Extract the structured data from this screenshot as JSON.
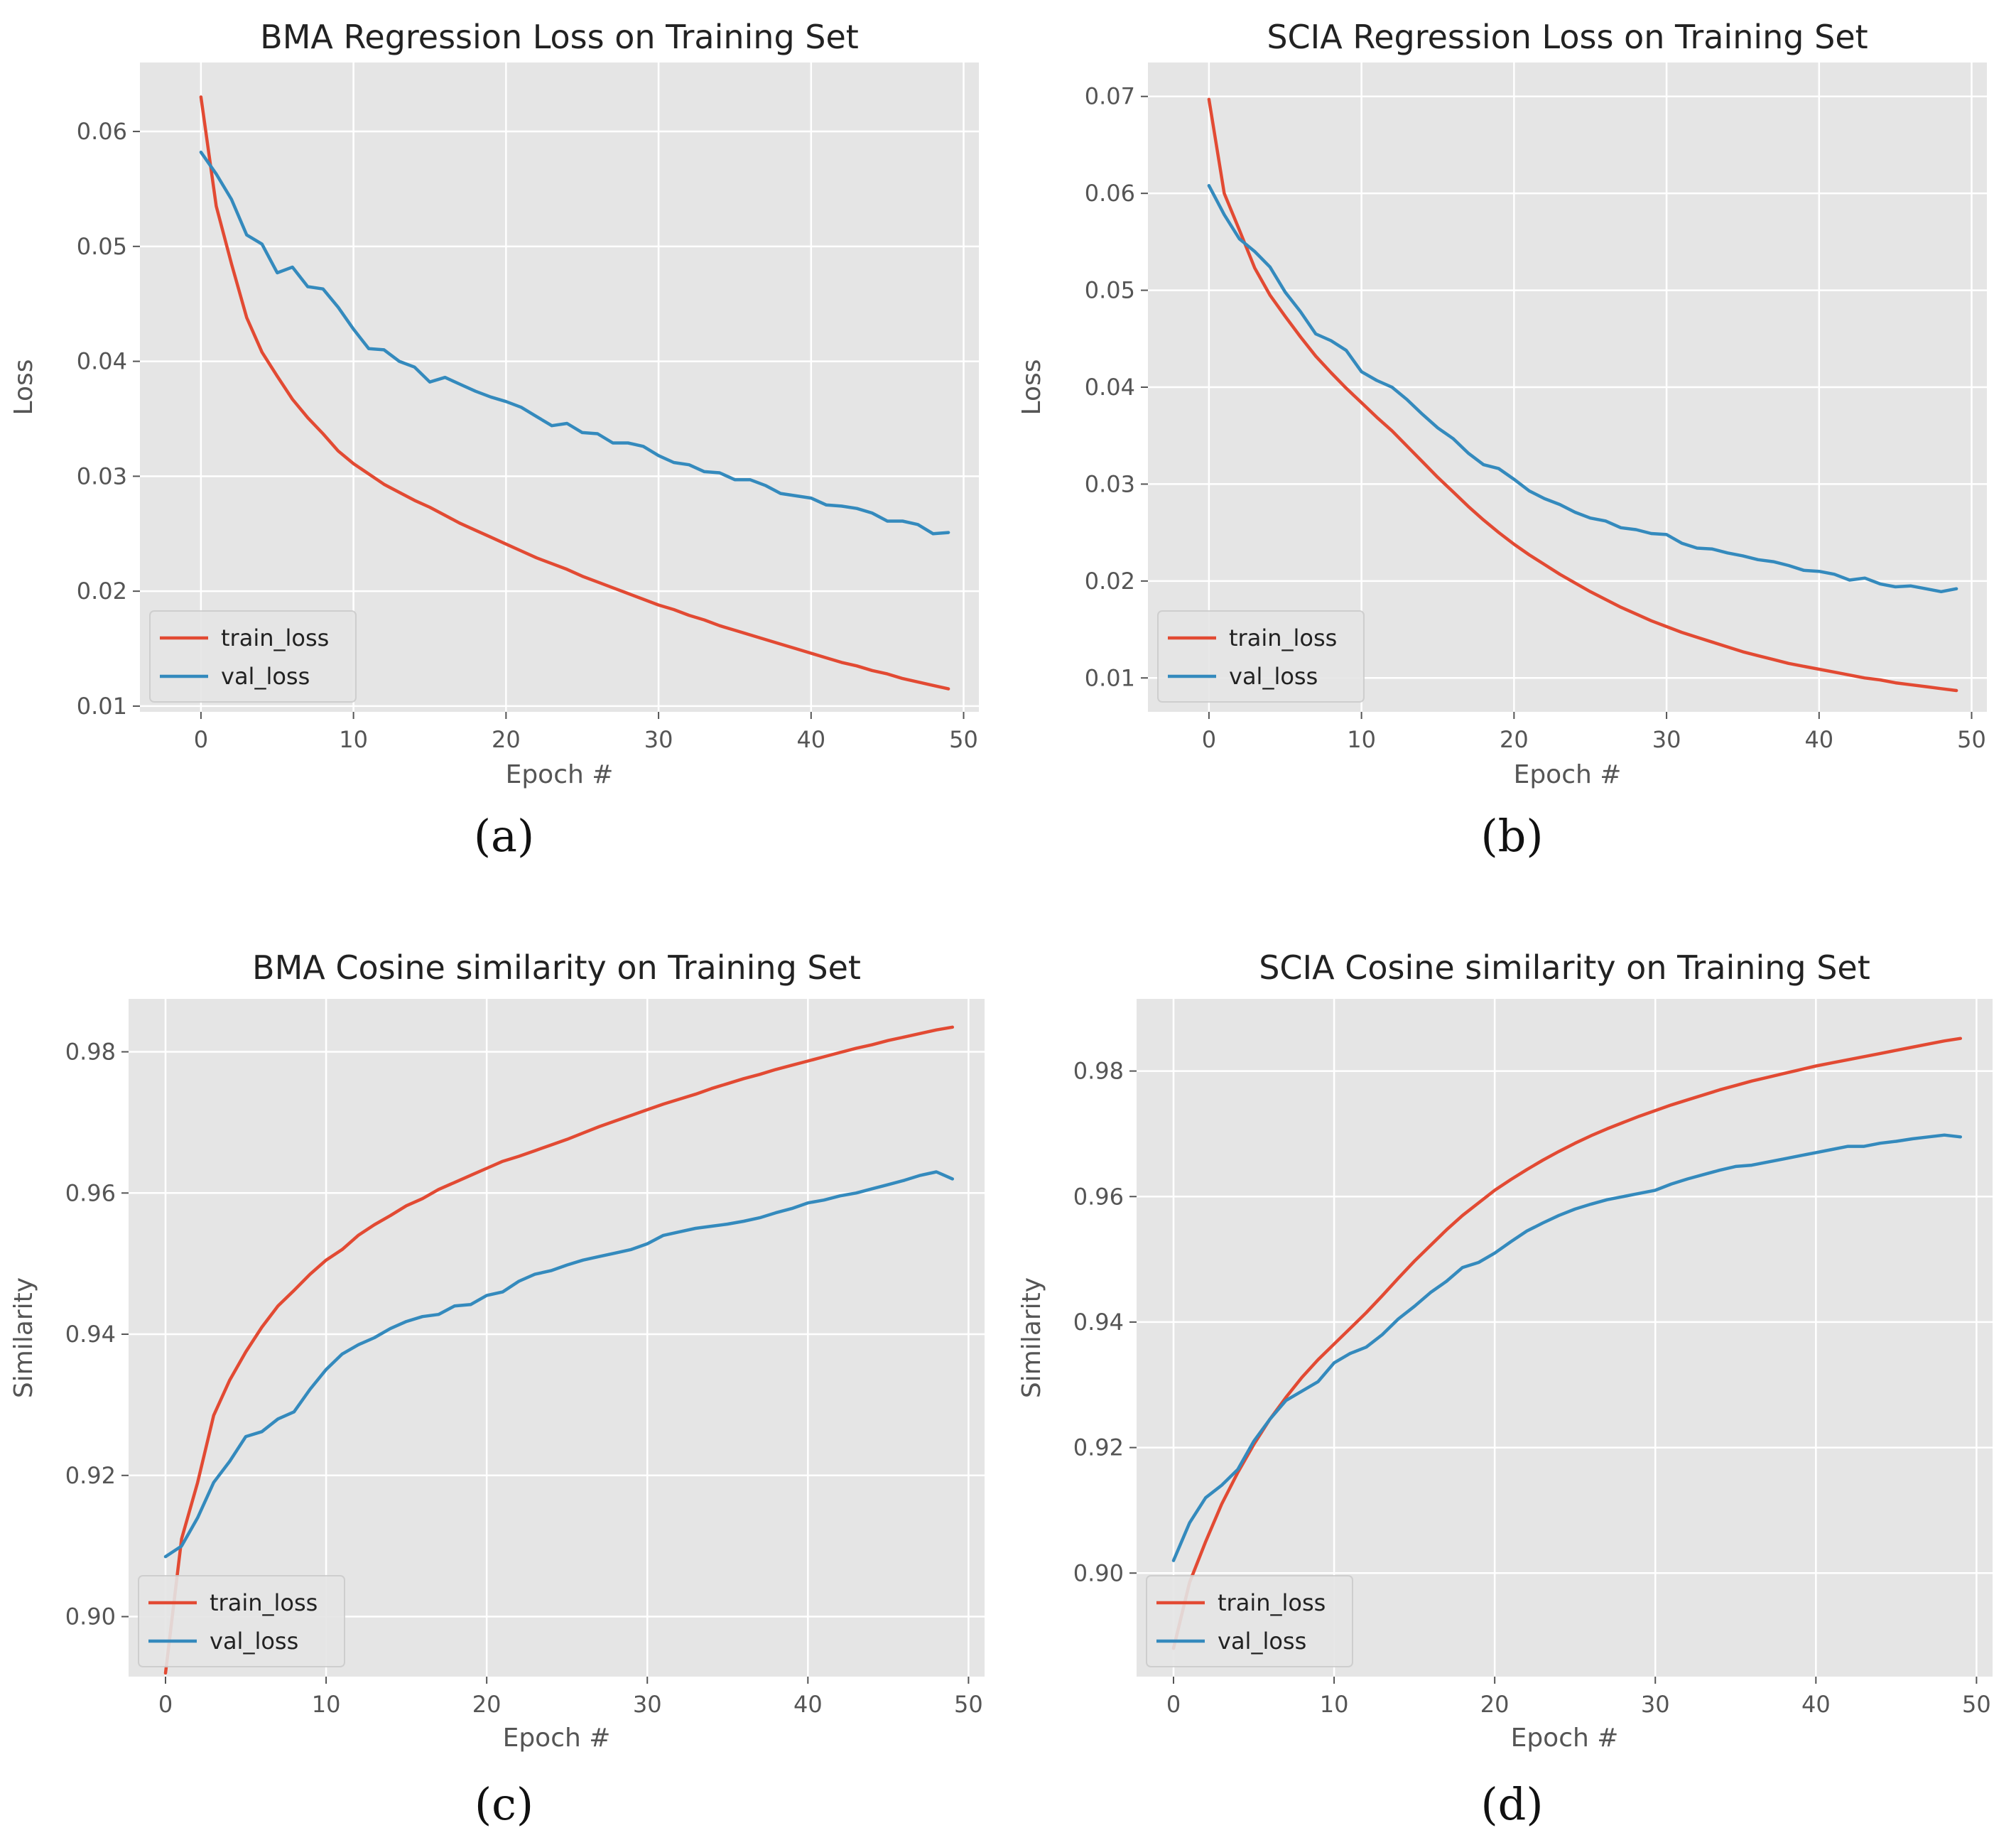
{
  "colors": {
    "train": "#e24a33",
    "val": "#348abd",
    "plot_bg": "#e5e5e5",
    "grid": "#ffffff"
  },
  "chart_data": [
    {
      "type": "line",
      "caption": "(a)",
      "title": "BMA Regression Loss on Training Set",
      "xlabel": "Epoch #",
      "ylabel": "Loss",
      "xlim": [
        -4,
        51
      ],
      "ylim": [
        0.0095,
        0.066
      ],
      "xticks": [
        0,
        10,
        20,
        30,
        40,
        50
      ],
      "xtick_labels": [
        "0",
        "10",
        "20",
        "30",
        "40",
        "50"
      ],
      "yticks": [
        0.01,
        0.02,
        0.03,
        0.04,
        0.05,
        0.06
      ],
      "ytick_labels": [
        "0.01",
        "0.02",
        "0.03",
        "0.04",
        "0.05",
        "0.06"
      ],
      "grid": true,
      "legend_position": "lower-left",
      "x": [
        0,
        1,
        2,
        3,
        4,
        5,
        6,
        7,
        8,
        9,
        10,
        11,
        12,
        13,
        14,
        15,
        16,
        17,
        18,
        19,
        20,
        21,
        22,
        23,
        24,
        25,
        26,
        27,
        28,
        29,
        30,
        31,
        32,
        33,
        34,
        35,
        36,
        37,
        38,
        39,
        40,
        41,
        42,
        43,
        44,
        45,
        46,
        47,
        48,
        49
      ],
      "series": [
        {
          "name": "train_loss",
          "values": [
            0.063,
            0.0535,
            0.0485,
            0.0438,
            0.0408,
            0.0387,
            0.0367,
            0.0351,
            0.0337,
            0.0322,
            0.0311,
            0.0302,
            0.0293,
            0.0286,
            0.0279,
            0.0273,
            0.0266,
            0.0259,
            0.0253,
            0.0247,
            0.0241,
            0.0235,
            0.0229,
            0.0224,
            0.0219,
            0.0213,
            0.0208,
            0.0203,
            0.0198,
            0.0193,
            0.0188,
            0.0184,
            0.0179,
            0.0175,
            0.017,
            0.0166,
            0.0162,
            0.0158,
            0.0154,
            0.015,
            0.0146,
            0.0142,
            0.0138,
            0.0135,
            0.0131,
            0.0128,
            0.0124,
            0.0121,
            0.0118,
            0.0115
          ]
        },
        {
          "name": "val_loss",
          "values": [
            0.0582,
            0.0563,
            0.0541,
            0.051,
            0.0502,
            0.0477,
            0.0482,
            0.0465,
            0.0463,
            0.0447,
            0.0428,
            0.0411,
            0.041,
            0.04,
            0.0395,
            0.0382,
            0.0386,
            0.038,
            0.0374,
            0.0369,
            0.0365,
            0.036,
            0.0352,
            0.0344,
            0.0346,
            0.0338,
            0.0337,
            0.0329,
            0.0329,
            0.0326,
            0.0318,
            0.0312,
            0.031,
            0.0304,
            0.0303,
            0.0297,
            0.0297,
            0.0292,
            0.0285,
            0.0283,
            0.0281,
            0.0275,
            0.0274,
            0.0272,
            0.0268,
            0.0261,
            0.0261,
            0.0258,
            0.025,
            0.0251
          ]
        }
      ]
    },
    {
      "type": "line",
      "caption": "(b)",
      "title": "SCIA Regression Loss on Training Set",
      "xlabel": "Epoch #",
      "ylabel": "Loss",
      "xlim": [
        -4,
        51
      ],
      "ylim": [
        0.0065,
        0.0735
      ],
      "xticks": [
        0,
        10,
        20,
        30,
        40,
        50
      ],
      "xtick_labels": [
        "0",
        "10",
        "20",
        "30",
        "40",
        "50"
      ],
      "yticks": [
        0.01,
        0.02,
        0.03,
        0.04,
        0.05,
        0.06,
        0.07
      ],
      "ytick_labels": [
        "0.01",
        "0.02",
        "0.03",
        "0.04",
        "0.05",
        "0.06",
        "0.07"
      ],
      "grid": true,
      "legend_position": "lower-left",
      "x": [
        0,
        1,
        2,
        3,
        4,
        5,
        6,
        7,
        8,
        9,
        10,
        11,
        12,
        13,
        14,
        15,
        16,
        17,
        18,
        19,
        20,
        21,
        22,
        23,
        24,
        25,
        26,
        27,
        28,
        29,
        30,
        31,
        32,
        33,
        34,
        35,
        36,
        37,
        38,
        39,
        40,
        41,
        42,
        43,
        44,
        45,
        46,
        47,
        48,
        49
      ],
      "series": [
        {
          "name": "train_loss",
          "values": [
            0.0697,
            0.06,
            0.0562,
            0.0523,
            0.0495,
            0.0473,
            0.0452,
            0.0432,
            0.0415,
            0.0399,
            0.0384,
            0.0369,
            0.0355,
            0.0339,
            0.0323,
            0.0307,
            0.0292,
            0.0277,
            0.0263,
            0.025,
            0.0238,
            0.0227,
            0.0217,
            0.0207,
            0.0198,
            0.0189,
            0.0181,
            0.0173,
            0.0166,
            0.0159,
            0.0153,
            0.0147,
            0.0142,
            0.0137,
            0.0132,
            0.0127,
            0.0123,
            0.0119,
            0.0115,
            0.0112,
            0.0109,
            0.0106,
            0.0103,
            0.01,
            0.0098,
            0.0095,
            0.0093,
            0.0091,
            0.0089,
            0.0087
          ]
        },
        {
          "name": "val_loss",
          "values": [
            0.0608,
            0.0578,
            0.0553,
            0.054,
            0.0524,
            0.0498,
            0.0478,
            0.0455,
            0.0448,
            0.0438,
            0.0416,
            0.0407,
            0.04,
            0.0387,
            0.0372,
            0.0358,
            0.0347,
            0.0332,
            0.032,
            0.0316,
            0.0305,
            0.0293,
            0.0285,
            0.0279,
            0.0271,
            0.0265,
            0.0262,
            0.0255,
            0.0253,
            0.0249,
            0.0248,
            0.0239,
            0.0234,
            0.0233,
            0.0229,
            0.0226,
            0.0222,
            0.022,
            0.0216,
            0.0211,
            0.021,
            0.0207,
            0.0201,
            0.0203,
            0.0197,
            0.0194,
            0.0195,
            0.0192,
            0.0189,
            0.0192
          ]
        }
      ]
    },
    {
      "type": "line",
      "caption": "(c)",
      "title": "BMA Cosine similarity on Training Set",
      "xlabel": "Epoch #",
      "ylabel": "Similarity",
      "xlim": [
        -2.3,
        51
      ],
      "ylim": [
        0.8915,
        0.9875
      ],
      "xticks": [
        0,
        10,
        20,
        30,
        40,
        50
      ],
      "xtick_labels": [
        "0",
        "10",
        "20",
        "30",
        "40",
        "50"
      ],
      "yticks": [
        0.9,
        0.92,
        0.94,
        0.96,
        0.98
      ],
      "ytick_labels": [
        "0.90",
        "0.92",
        "0.94",
        "0.96",
        "0.98"
      ],
      "grid": true,
      "legend_position": "lower-left",
      "x": [
        0,
        1,
        2,
        3,
        4,
        5,
        6,
        7,
        8,
        9,
        10,
        11,
        12,
        13,
        14,
        15,
        16,
        17,
        18,
        19,
        20,
        21,
        22,
        23,
        24,
        25,
        26,
        27,
        28,
        29,
        30,
        31,
        32,
        33,
        34,
        35,
        36,
        37,
        38,
        39,
        40,
        41,
        42,
        43,
        44,
        45,
        46,
        47,
        48,
        49
      ],
      "series": [
        {
          "name": "train_loss",
          "values": [
            0.892,
            0.911,
            0.919,
            0.9285,
            0.9335,
            0.9375,
            0.941,
            0.944,
            0.9462,
            0.9485,
            0.9505,
            0.952,
            0.954,
            0.9555,
            0.9568,
            0.9582,
            0.9592,
            0.9605,
            0.9615,
            0.9625,
            0.9635,
            0.9645,
            0.9652,
            0.966,
            0.9668,
            0.9676,
            0.9685,
            0.9694,
            0.9702,
            0.971,
            0.9718,
            0.9726,
            0.9733,
            0.974,
            0.9748,
            0.9755,
            0.9762,
            0.9768,
            0.9775,
            0.9781,
            0.9787,
            0.9793,
            0.9799,
            0.9805,
            0.981,
            0.9816,
            0.9821,
            0.9826,
            0.9831,
            0.9835
          ]
        },
        {
          "name": "val_loss",
          "values": [
            0.9085,
            0.91,
            0.914,
            0.919,
            0.922,
            0.9255,
            0.9262,
            0.928,
            0.929,
            0.9322,
            0.935,
            0.9372,
            0.9385,
            0.9395,
            0.9408,
            0.9418,
            0.9425,
            0.9428,
            0.944,
            0.9442,
            0.9455,
            0.946,
            0.9475,
            0.9485,
            0.949,
            0.9498,
            0.9505,
            0.951,
            0.9515,
            0.952,
            0.9528,
            0.954,
            0.9545,
            0.955,
            0.9553,
            0.9556,
            0.956,
            0.9565,
            0.9572,
            0.9578,
            0.9586,
            0.959,
            0.9596,
            0.96,
            0.9606,
            0.9612,
            0.9618,
            0.9625,
            0.963,
            0.962
          ]
        }
      ]
    },
    {
      "type": "line",
      "caption": "(d)",
      "title": "SCIA Cosine similarity on Training Set",
      "xlabel": "Epoch #",
      "ylabel": "Similarity",
      "xlim": [
        -2.3,
        51
      ],
      "ylim": [
        0.8835,
        0.9915
      ],
      "xticks": [
        0,
        10,
        20,
        30,
        40,
        50
      ],
      "xtick_labels": [
        "0",
        "10",
        "20",
        "30",
        "40",
        "50"
      ],
      "yticks": [
        0.9,
        0.92,
        0.94,
        0.96,
        0.98
      ],
      "ytick_labels": [
        "0.90",
        "0.92",
        "0.94",
        "0.96",
        "0.98"
      ],
      "grid": true,
      "legend_position": "lower-left",
      "x": [
        0,
        1,
        2,
        3,
        4,
        5,
        6,
        7,
        8,
        9,
        10,
        11,
        12,
        13,
        14,
        15,
        16,
        17,
        18,
        19,
        20,
        21,
        22,
        23,
        24,
        25,
        26,
        27,
        28,
        29,
        30,
        31,
        32,
        33,
        34,
        35,
        36,
        37,
        38,
        39,
        40,
        41,
        42,
        43,
        44,
        45,
        46,
        47,
        48,
        49
      ],
      "series": [
        {
          "name": "train_loss",
          "values": [
            0.888,
            0.8985,
            0.905,
            0.911,
            0.916,
            0.9205,
            0.9245,
            0.928,
            0.9312,
            0.934,
            0.9365,
            0.939,
            0.9415,
            0.9442,
            0.947,
            0.9497,
            0.9522,
            0.9547,
            0.957,
            0.959,
            0.961,
            0.9627,
            0.9643,
            0.9658,
            0.9672,
            0.9685,
            0.9697,
            0.9708,
            0.9718,
            0.9728,
            0.9737,
            0.9746,
            0.9754,
            0.9762,
            0.977,
            0.9777,
            0.9784,
            0.979,
            0.9796,
            0.9802,
            0.9808,
            0.9813,
            0.9818,
            0.9823,
            0.9828,
            0.9833,
            0.9838,
            0.9843,
            0.9848,
            0.9852
          ]
        },
        {
          "name": "val_loss",
          "values": [
            0.902,
            0.908,
            0.912,
            0.914,
            0.9165,
            0.921,
            0.9245,
            0.9275,
            0.929,
            0.9305,
            0.9335,
            0.935,
            0.936,
            0.938,
            0.9405,
            0.9425,
            0.9447,
            0.9465,
            0.9487,
            0.9495,
            0.951,
            0.9528,
            0.9545,
            0.9558,
            0.957,
            0.958,
            0.9588,
            0.9595,
            0.96,
            0.9605,
            0.961,
            0.962,
            0.9628,
            0.9635,
            0.9642,
            0.9648,
            0.965,
            0.9655,
            0.966,
            0.9665,
            0.967,
            0.9675,
            0.968,
            0.968,
            0.9685,
            0.9688,
            0.9692,
            0.9695,
            0.9698,
            0.9695
          ]
        }
      ]
    }
  ]
}
